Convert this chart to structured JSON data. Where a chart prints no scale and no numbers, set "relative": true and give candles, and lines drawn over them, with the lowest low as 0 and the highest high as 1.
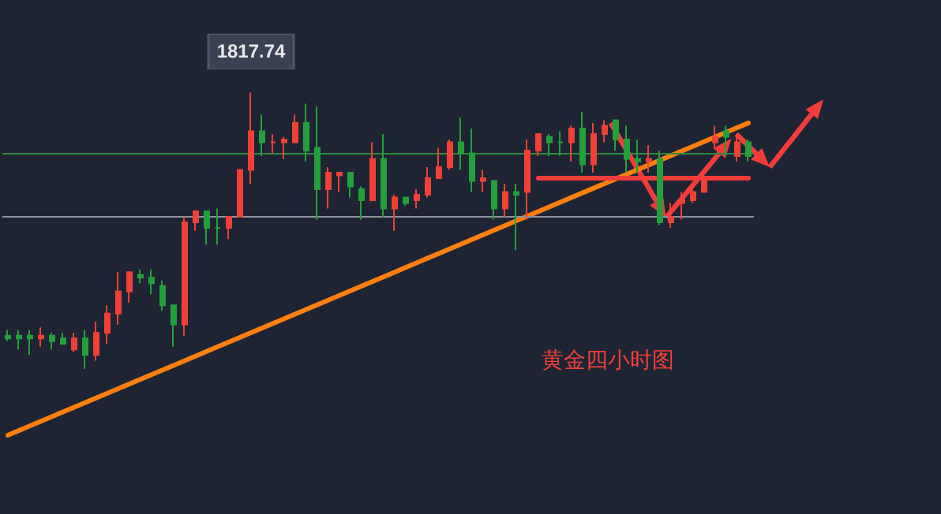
{
  "chart_data": {
    "type": "candlestick",
    "relative": true,
    "tick_labels": false,
    "categories": [
      null,
      null,
      null,
      null,
      null,
      null,
      null,
      null,
      null,
      null,
      null,
      null,
      null,
      null,
      null,
      null,
      null,
      null,
      null,
      null,
      null,
      null,
      null,
      null,
      null,
      null,
      null,
      null,
      null,
      null,
      null,
      null,
      null,
      null,
      null,
      null,
      null,
      null,
      null,
      null,
      null,
      null,
      null,
      null,
      null,
      null,
      null,
      null,
      null,
      null,
      null,
      null,
      null,
      null,
      null,
      null,
      null,
      null,
      null,
      null,
      null,
      null,
      null,
      null,
      null,
      null,
      null,
      null
    ],
    "colors": [
      "#23a03b",
      "#23a03b",
      "#23a03b",
      "#ef4136",
      "#23a03b",
      "#23a03b",
      "#ef4136",
      "#23a03b",
      "#ef4136",
      "#ef4136",
      "#ef4136",
      "#ef4136",
      "#23a03b",
      "#23a03b",
      "#23a03b",
      "#23a03b",
      "#ef4136",
      "#ef4136",
      "#23a03b",
      "#23a03b",
      "#ef4136",
      "#ef4136",
      "#ef4136",
      "#23a03b",
      "#ef4136",
      "#ef4136",
      "#ef4136",
      "#23a03b",
      "#23a03b",
      "#ef4136",
      "#ef4136",
      "#23a03b",
      "#23a03b",
      "#ef4136",
      "#23a03b",
      "#ef4136",
      "#23a03b",
      "#ef4136",
      "#ef4136",
      "#ef4136",
      "#ef4136",
      "#23a03b",
      "#23a03b",
      "#ef4136",
      "#23a03b",
      "#ef4136",
      "#23a03b",
      "#ef4136",
      "#ef4136",
      "#23a03b",
      "#23a03b",
      "#ef4136",
      "#23a03b",
      "#ef4136",
      "#ef4136",
      "#23a03b",
      "#23a03b",
      "#23a03b",
      "#ef4136",
      "#23a03b",
      "#ef4136",
      "#ef4136",
      "#ef4136",
      "#ef4136",
      "#ef4136",
      "#23a03b",
      "#ef4136",
      "#23a03b"
    ],
    "ohlc": [
      [
        0.12,
        0.14,
        0.1,
        0.11
      ],
      [
        0.12,
        0.14,
        0.07,
        0.11
      ],
      [
        0.12,
        0.14,
        0.05,
        0.11
      ],
      [
        0.11,
        0.15,
        0.08,
        0.12
      ],
      [
        0.12,
        0.13,
        0.07,
        0.1
      ],
      [
        0.11,
        0.13,
        0.09,
        0.09
      ],
      [
        0.07,
        0.13,
        0.06,
        0.11
      ],
      [
        0.11,
        0.14,
        0,
        0.05
      ],
      [
        0.05,
        0.17,
        0.03,
        0.13
      ],
      [
        0.13,
        0.23,
        0.09,
        0.2
      ],
      [
        0.2,
        0.35,
        0.16,
        0.28
      ],
      [
        0.28,
        0.35,
        0.24,
        0.35
      ],
      [
        0.34,
        0.36,
        0.31,
        0.33
      ],
      [
        0.33,
        0.36,
        0.27,
        0.31
      ],
      [
        0.3,
        0.32,
        0.21,
        0.23
      ],
      [
        0.23,
        0.23,
        0.08,
        0.16
      ],
      [
        0.16,
        0.55,
        0.12,
        0.53
      ],
      [
        0.53,
        0.57,
        0.5,
        0.57
      ],
      [
        0.57,
        0.57,
        0.45,
        0.51
      ],
      [
        0.51,
        0.58,
        0.45,
        0.51
      ],
      [
        0.51,
        0.55,
        0.47,
        0.55
      ],
      [
        0.55,
        0.72,
        0.55,
        0.72
      ],
      [
        0.72,
        1,
        0.67,
        0.86
      ],
      [
        0.86,
        0.92,
        0.77,
        0.82
      ],
      [
        0.82,
        0.85,
        0.78,
        0.82
      ],
      [
        0.82,
        0.84,
        0.76,
        0.83
      ],
      [
        0.82,
        0.92,
        0.82,
        0.89
      ],
      [
        0.89,
        0.96,
        0.75,
        0.79
      ],
      [
        0.8,
        0.95,
        0.54,
        0.65
      ],
      [
        0.65,
        0.73,
        0.58,
        0.71
      ],
      [
        0.7,
        0.71,
        0.64,
        0.71
      ],
      [
        0.71,
        0.71,
        0.62,
        0.66
      ],
      [
        0.65,
        0.66,
        0.54,
        0.61
      ],
      [
        0.61,
        0.82,
        0.61,
        0.76
      ],
      [
        0.76,
        0.85,
        0.55,
        0.58
      ],
      [
        0.58,
        0.63,
        0.5,
        0.62
      ],
      [
        0.62,
        0.62,
        0.59,
        0.6
      ],
      [
        0.61,
        0.65,
        0.58,
        0.63
      ],
      [
        0.63,
        0.73,
        0.62,
        0.69
      ],
      [
        0.69,
        0.8,
        0.69,
        0.73
      ],
      [
        0.73,
        0.83,
        0.72,
        0.82
      ],
      [
        0.82,
        0.91,
        0.72,
        0.78
      ],
      [
        0.78,
        0.87,
        0.64,
        0.68
      ],
      [
        0.68,
        0.72,
        0.64,
        0.69
      ],
      [
        0.68,
        0.68,
        0.54,
        0.58
      ],
      [
        0.58,
        0.67,
        0.55,
        0.64
      ],
      [
        0.64,
        0.67,
        0.43,
        0.63
      ],
      [
        0.64,
        0.83,
        0.54,
        0.79
      ],
      [
        0.79,
        0.85,
        0.77,
        0.85
      ],
      [
        0.84,
        0.85,
        0.77,
        0.82
      ],
      [
        0.82,
        0.86,
        0.77,
        0.82
      ],
      [
        0.82,
        0.88,
        0.75,
        0.87
      ],
      [
        0.87,
        0.93,
        0.71,
        0.74
      ],
      [
        0.74,
        0.89,
        0.71,
        0.85
      ],
      [
        0.85,
        0.9,
        0.82,
        0.88
      ],
      [
        0.9,
        0.9,
        0.79,
        0.83
      ],
      [
        0.83,
        0.88,
        0.71,
        0.76
      ],
      [
        0.76,
        0.83,
        0.71,
        0.75
      ],
      [
        0.75,
        0.81,
        0.71,
        0.76
      ],
      [
        0.76,
        0.79,
        0.52,
        0.53
      ],
      [
        0.53,
        0.6,
        0.51,
        0.55
      ],
      [
        0.6,
        0.64,
        0.54,
        0.61
      ],
      [
        0.61,
        0.67,
        0.6,
        0.64
      ],
      [
        0.64,
        0.71,
        0.64,
        0.68
      ],
      [
        0.82,
        0.88,
        0.8,
        0.84
      ],
      [
        0.86,
        0.88,
        0.77,
        0.84
      ],
      [
        0.77,
        0.85,
        0.75,
        0.82
      ],
      [
        0.82,
        0.83,
        0.75,
        0.77
      ]
    ],
    "series": [
      {
        "type": "line",
        "color": "#ff7f0e",
        "values": [
          -0.24,
          null,
          null,
          null,
          null,
          null,
          null,
          null,
          null,
          null,
          null,
          null,
          null,
          null,
          null,
          null,
          null,
          null,
          null,
          null,
          null,
          null,
          null,
          null,
          null,
          null,
          null,
          null,
          null,
          null,
          null,
          null,
          null,
          null,
          null,
          null,
          null,
          null,
          null,
          null,
          null,
          null,
          null,
          null,
          null,
          null,
          null,
          null,
          null,
          null,
          null,
          null,
          null,
          null,
          null,
          null,
          null,
          null,
          null,
          null,
          null,
          null,
          null,
          null,
          null,
          null,
          null,
          0.89
        ]
      },
      {
        "type": "line",
        "color": "#f23c3c",
        "values": [
          null,
          null,
          null,
          null,
          null,
          null,
          null,
          null,
          null,
          null,
          null,
          null,
          null,
          null,
          null,
          null,
          null,
          null,
          null,
          null,
          null,
          null,
          null,
          null,
          null,
          null,
          null,
          null,
          null,
          null,
          null,
          null,
          null,
          null,
          null,
          null,
          null,
          null,
          null,
          null,
          null,
          null,
          null,
          null,
          null,
          null,
          null,
          null,
          0.69,
          null,
          null,
          null,
          null,
          null,
          null,
          null,
          null,
          null,
          null,
          null,
          null,
          null,
          null,
          null,
          null,
          null,
          null,
          0.69
        ]
      }
    ],
    "ref_lines": [
      {
        "axis": "y",
        "value": 0.78,
        "color": "#2e8b3e"
      },
      {
        "axis": "y",
        "value": 0.55,
        "color": "#8e939e"
      }
    ],
    "annotations": [
      {
        "text": "1817.74",
        "y": 1
      },
      "黄金四小时图"
    ]
  }
}
